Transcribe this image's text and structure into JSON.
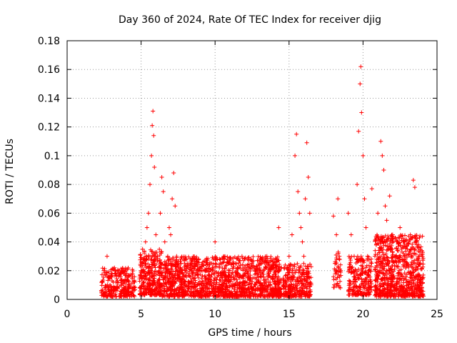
{
  "chart_data": {
    "type": "scatter",
    "title": "Day 360 of 2024, Rate Of TEC Index for receiver djig",
    "xlabel": "GPS time / hours",
    "ylabel": "ROTI / TECUs",
    "xlim": [
      0,
      25
    ],
    "ylim": [
      0,
      0.18
    ],
    "x_ticks": [
      0,
      5,
      10,
      15,
      20,
      25
    ],
    "y_ticks": [
      0,
      0.02,
      0.04,
      0.06,
      0.08,
      0.1,
      0.12,
      0.14,
      0.16,
      0.18
    ],
    "x_tick_labels": [
      "0",
      "5",
      "10",
      "15",
      "20",
      "25"
    ],
    "y_tick_labels": [
      "0",
      "0.02",
      "0.04",
      "0.06",
      "0.08",
      "0.1",
      "0.12",
      "0.14",
      "0.16",
      "0.18"
    ],
    "grid": true,
    "marker": "+",
    "color": "#ff0000",
    "series": [
      {
        "name": "ROTI",
        "x": [
          2.4,
          2.5,
          2.6,
          2.7,
          2.8,
          2.9,
          3.0,
          3.1,
          3.2,
          3.3,
          3.4,
          3.5,
          3.6,
          3.7,
          3.8,
          3.9,
          4.0,
          4.1,
          4.2,
          4.3,
          4.4,
          4.5,
          5.0,
          5.1,
          5.2,
          5.3,
          5.4,
          5.5,
          5.6,
          5.7,
          5.75,
          5.8,
          5.85,
          5.9,
          6.0,
          6.1,
          6.2,
          6.3,
          6.4,
          6.5,
          6.6,
          6.7,
          6.8,
          6.9,
          7.0,
          7.1,
          7.2,
          7.3,
          7.4,
          7.5,
          7.6,
          7.7,
          7.8,
          7.9,
          8.0,
          8.5,
          9.0,
          9.5,
          10.0,
          10.5,
          11.0,
          11.5,
          12.0,
          12.5,
          13.0,
          13.5,
          14.0,
          14.3,
          14.8,
          15.0,
          15.2,
          15.4,
          15.5,
          15.6,
          15.7,
          15.8,
          15.9,
          16.0,
          16.1,
          16.2,
          16.3,
          16.4,
          18.0,
          18.2,
          18.3,
          18.4,
          18.5,
          19.0,
          19.2,
          19.4,
          19.6,
          19.7,
          19.8,
          19.85,
          19.9,
          20.0,
          20.1,
          20.2,
          20.3,
          20.4,
          20.6,
          20.8,
          21.0,
          21.2,
          21.3,
          21.4,
          21.5,
          21.6,
          21.8,
          22.0,
          22.2,
          22.5,
          22.8,
          23.0,
          23.2,
          23.4,
          23.5,
          23.6,
          23.8,
          24.0,
          2.6,
          3.2,
          3.8,
          4.2,
          5.2,
          5.5,
          5.9,
          6.3,
          6.8,
          7.2,
          7.6,
          8.2,
          8.8,
          9.4,
          10.2,
          10.8,
          11.4,
          12.2,
          12.8,
          13.6,
          14.1,
          15.1,
          15.7,
          16.3,
          18.1,
          19.5,
          20.0,
          21.1,
          21.7,
          22.4,
          23.1,
          23.7
        ],
        "y": [
          0.012,
          0.02,
          0.008,
          0.03,
          0.015,
          0.01,
          0.018,
          0.006,
          0.022,
          0.012,
          0.009,
          0.016,
          0.004,
          0.02,
          0.011,
          0.007,
          0.014,
          0.021,
          0.01,
          0.005,
          0.017,
          0.012,
          0.02,
          0.035,
          0.025,
          0.04,
          0.05,
          0.06,
          0.08,
          0.1,
          0.121,
          0.131,
          0.114,
          0.092,
          0.045,
          0.03,
          0.02,
          0.06,
          0.085,
          0.075,
          0.04,
          0.025,
          0.03,
          0.05,
          0.045,
          0.07,
          0.088,
          0.065,
          0.03,
          0.02,
          0.015,
          0.025,
          0.018,
          0.012,
          0.02,
          0.018,
          0.022,
          0.012,
          0.04,
          0.015,
          0.02,
          0.012,
          0.018,
          0.025,
          0.02,
          0.03,
          0.015,
          0.05,
          0.012,
          0.03,
          0.045,
          0.1,
          0.115,
          0.075,
          0.06,
          0.05,
          0.04,
          0.03,
          0.07,
          0.109,
          0.085,
          0.06,
          0.058,
          0.045,
          0.07,
          0.03,
          0.02,
          0.06,
          0.045,
          0.03,
          0.08,
          0.117,
          0.15,
          0.162,
          0.13,
          0.1,
          0.07,
          0.05,
          0.03,
          0.02,
          0.077,
          0.03,
          0.06,
          0.11,
          0.1,
          0.09,
          0.065,
          0.055,
          0.072,
          0.045,
          0.03,
          0.05,
          0.04,
          0.035,
          0.045,
          0.083,
          0.078,
          0.04,
          0.03,
          0.015,
          0.005,
          0.008,
          0.006,
          0.009,
          0.012,
          0.014,
          0.018,
          0.01,
          0.013,
          0.011,
          0.016,
          0.012,
          0.01,
          0.014,
          0.009,
          0.013,
          0.011,
          0.015,
          0.012,
          0.01,
          0.016,
          0.009,
          0.02,
          0.015,
          0.025,
          0.012,
          0.018,
          0.02,
          0.025,
          0.018,
          0.012,
          0.01
        ]
      }
    ],
    "bands": [
      {
        "x_range": [
          2.3,
          4.6
        ],
        "y_range": [
          0.002,
          0.022
        ],
        "n": 260
      },
      {
        "x_range": [
          4.9,
          6.4
        ],
        "y_range": [
          0.003,
          0.035
        ],
        "n": 300
      },
      {
        "x_range": [
          6.4,
          14.5
        ],
        "y_range": [
          0.002,
          0.03
        ],
        "n": 1400
      },
      {
        "x_range": [
          14.6,
          16.5
        ],
        "y_range": [
          0.002,
          0.025
        ],
        "n": 280
      },
      {
        "x_range": [
          18.0,
          18.5
        ],
        "y_range": [
          0.008,
          0.035
        ],
        "n": 40
      },
      {
        "x_range": [
          19.0,
          20.6
        ],
        "y_range": [
          0.003,
          0.03
        ],
        "n": 220
      },
      {
        "x_range": [
          20.8,
          24.1
        ],
        "y_range": [
          0.002,
          0.045
        ],
        "n": 800
      }
    ]
  }
}
